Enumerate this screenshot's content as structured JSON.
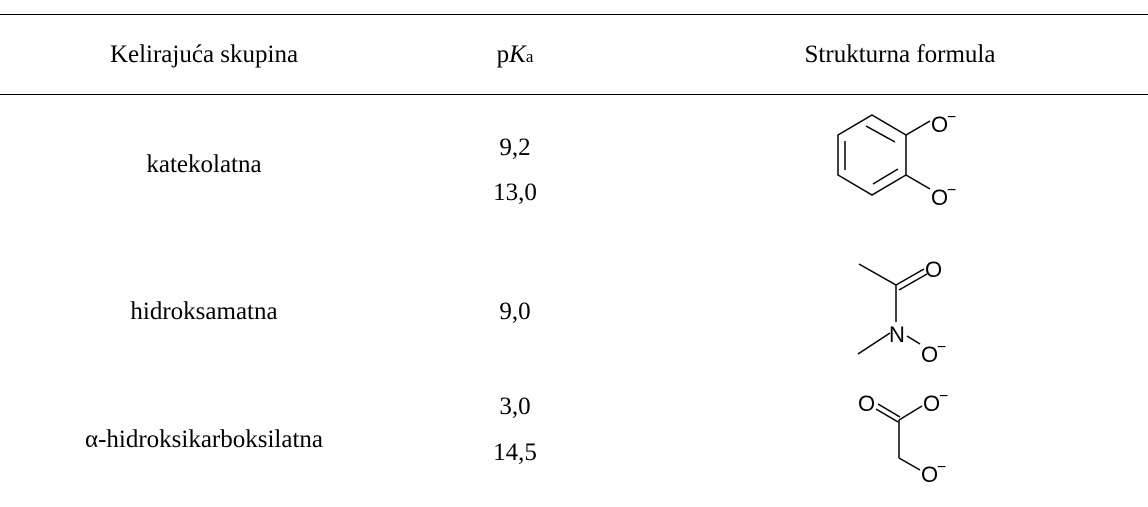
{
  "header": {
    "col1": "Kelirajuća skupina",
    "col2_prefix": "p",
    "col2_K": "K",
    "col2_sub": "a",
    "col3": "Strukturna formula"
  },
  "rows": [
    {
      "group": "katekolatna",
      "pka": [
        "9,2",
        "13,0"
      ],
      "structure": "catechol-dianion"
    },
    {
      "group": "hidroksamatna",
      "pka": [
        "9,0"
      ],
      "structure": "hydroxamate-anion"
    },
    {
      "group": "α-hidroksikarboksilatna",
      "pka": [
        "3,0",
        "14,5"
      ],
      "structure": "alpha-hydroxycarboxylate-dianion"
    }
  ],
  "atoms": {
    "O": "O",
    "N": "N",
    "minus": "−"
  }
}
